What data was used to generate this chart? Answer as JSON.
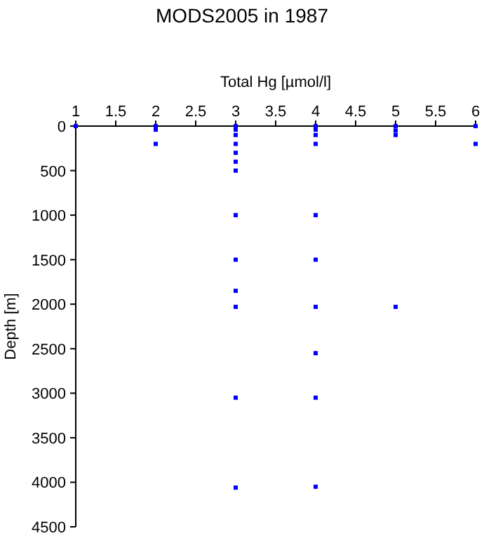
{
  "chart_data": {
    "type": "scatter",
    "title": "MODS2005 in 1987",
    "xlabel": "Total Hg [µmol/l]",
    "ylabel": "Depth [m]",
    "marker": "square",
    "grid": false,
    "xlim": [
      1,
      6
    ],
    "xticks": [
      1,
      1.5,
      2,
      2.5,
      3,
      3.5,
      4,
      4.5,
      5,
      5.5,
      6
    ],
    "ylim": [
      4500,
      0
    ],
    "yticks": [
      0,
      500,
      1000,
      1500,
      2000,
      2500,
      3000,
      3500,
      4000,
      4500
    ],
    "series": [
      {
        "color": "#0000ff",
        "x": [
          1,
          2,
          2,
          2,
          3,
          3,
          3,
          3,
          3,
          3,
          3,
          3,
          3,
          3,
          3,
          3,
          3,
          4,
          4,
          4,
          4,
          4,
          4,
          4,
          4,
          4,
          4,
          5,
          5,
          5,
          5,
          6,
          6
        ],
        "values": [
          0,
          0,
          40,
          200,
          0,
          40,
          100,
          200,
          300,
          400,
          500,
          1000,
          1500,
          1850,
          2030,
          3050,
          4060,
          0,
          40,
          100,
          200,
          1000,
          1500,
          2030,
          2550,
          3050,
          4050,
          0,
          50,
          100,
          2030,
          0,
          200
        ]
      }
    ]
  }
}
